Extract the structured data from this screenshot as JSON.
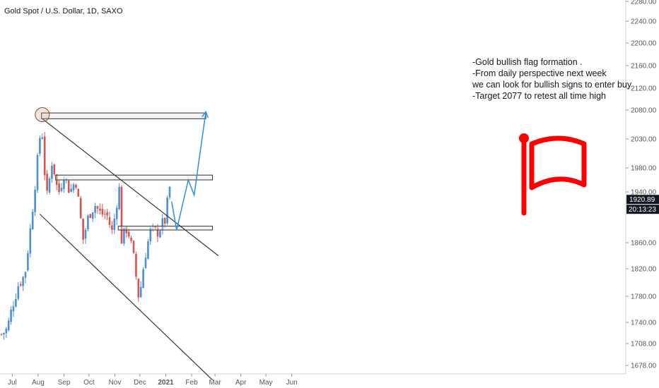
{
  "title": "Gold Spot / U.S. Dollar, 1D, SAXO",
  "annotation_lines": [
    "-Gold  bullish flag formation .",
    "-From daily perspective next week",
    "we can look for bullish signs to enter buy",
    "-Target 2077 to retest all time high"
  ],
  "price_label": "1920.89",
  "time_label": "20:13:23",
  "colors": {
    "bullish": "#4a90d9",
    "bearish": "#d9534f",
    "flag": "#ff0000",
    "projection": "#2a8fe0",
    "trendline": "#333333",
    "axis_text": "#555555",
    "price_label_bg": "#131722"
  },
  "icons": [
    "flag-icon"
  ],
  "chart_data": {
    "type": "candlestick",
    "title": "Gold Spot / U.S. Dollar, 1D, SAXO",
    "y_axis": {
      "position": "right",
      "ticks": [
        "2280.00",
        "2240.00",
        "2200.00",
        "2160.00",
        "2120.00",
        "2080.00",
        "2030.00",
        "1980.00",
        "1940.00",
        "1860.00",
        "1820.00",
        "1780.00",
        "1740.00",
        "1708.00",
        "1678.00"
      ],
      "ylim": [
        1670,
        2290
      ]
    },
    "x_axis": {
      "ticks": [
        "Jul",
        "Aug",
        "Sep",
        "Oct",
        "Nov",
        "Dec",
        "2021",
        "Feb",
        "Mar",
        "Apr",
        "May",
        "Jun"
      ],
      "range": [
        "2020-06-18",
        "2021-06-10"
      ]
    },
    "closes": [
      {
        "date": "2020-06-18",
        "close": 1722
      },
      {
        "date": "2020-06-25",
        "close": 1730
      },
      {
        "date": "2020-07-02",
        "close": 1770
      },
      {
        "date": "2020-07-09",
        "close": 1800
      },
      {
        "date": "2020-07-16",
        "close": 1810
      },
      {
        "date": "2020-07-23",
        "close": 1885
      },
      {
        "date": "2020-07-30",
        "close": 1975
      },
      {
        "date": "2020-08-05",
        "close": 2060
      },
      {
        "date": "2020-08-11",
        "close": 1925
      },
      {
        "date": "2020-08-18",
        "close": 1995
      },
      {
        "date": "2020-08-25",
        "close": 1935
      },
      {
        "date": "2020-09-01",
        "close": 1970
      },
      {
        "date": "2020-09-08",
        "close": 1940
      },
      {
        "date": "2020-09-15",
        "close": 1960
      },
      {
        "date": "2020-09-24",
        "close": 1865
      },
      {
        "date": "2020-10-01",
        "close": 1905
      },
      {
        "date": "2020-10-08",
        "close": 1920
      },
      {
        "date": "2020-10-15",
        "close": 1905
      },
      {
        "date": "2020-10-22",
        "close": 1905
      },
      {
        "date": "2020-10-29",
        "close": 1875
      },
      {
        "date": "2020-11-06",
        "close": 1950
      },
      {
        "date": "2020-11-09",
        "close": 1865
      },
      {
        "date": "2020-11-16",
        "close": 1885
      },
      {
        "date": "2020-11-23",
        "close": 1840
      },
      {
        "date": "2020-11-30",
        "close": 1775
      },
      {
        "date": "2020-12-07",
        "close": 1840
      },
      {
        "date": "2020-12-14",
        "close": 1880
      },
      {
        "date": "2020-12-21",
        "close": 1875
      },
      {
        "date": "2020-12-31",
        "close": 1895
      },
      {
        "date": "2021-01-06",
        "close": 1950
      },
      {
        "date": "2021-01-08",
        "close": 1920
      }
    ],
    "resistance_zones": [
      {
        "low": 2065,
        "high": 2075,
        "from": "2020-08-05",
        "to": "2021-02-18"
      },
      {
        "low": 1960,
        "high": 1968,
        "from": "2020-08-22",
        "to": "2021-02-26"
      },
      {
        "low": 1880,
        "high": 1886,
        "from": "2020-11-05",
        "to": "2021-02-26"
      }
    ],
    "trendlines": [
      {
        "from": {
          "date": "2020-08-06",
          "price": 2065
        },
        "to": {
          "date": "2021-03-05",
          "price": 1840
        }
      },
      {
        "from": {
          "date": "2020-08-03",
          "price": 1905
        },
        "to": {
          "date": "2021-02-26",
          "price": 1658
        }
      }
    ],
    "projection_path": [
      {
        "date": "2021-01-08",
        "price": 1925
      },
      {
        "date": "2021-01-14",
        "price": 1880
      },
      {
        "date": "2021-01-28",
        "price": 1960
      },
      {
        "date": "2021-02-04",
        "price": 1935
      },
      {
        "date": "2021-02-18",
        "price": 2077
      }
    ],
    "grid": false
  }
}
